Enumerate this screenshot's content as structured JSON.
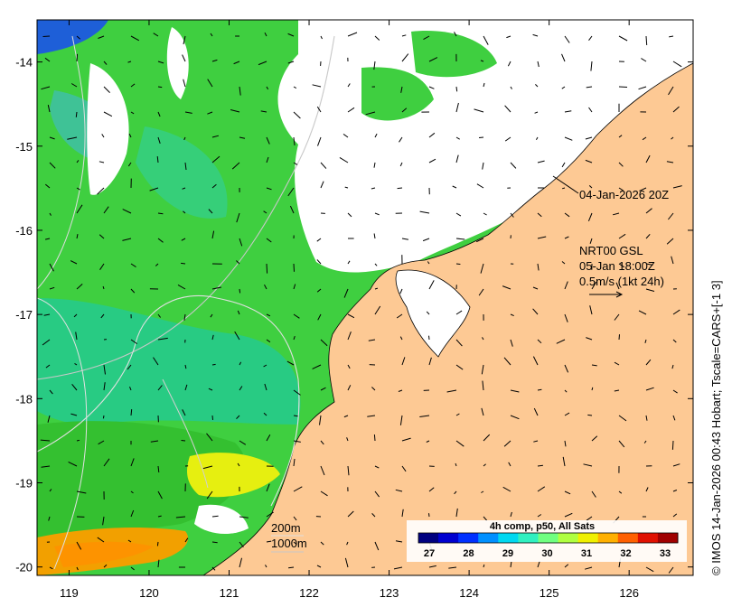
{
  "map": {
    "lon_ticks": [
      "119",
      "120",
      "121",
      "122",
      "123",
      "124",
      "125",
      "126"
    ],
    "lat_ticks": [
      "-14",
      "-15",
      "-16",
      "-17",
      "-18",
      "-19",
      "-20"
    ],
    "image_time": "04-Jan-2026 20Z",
    "current_model": "NRT00 GSL",
    "current_time": "05-Jan 18:00Z",
    "vector_scale": "0.5m/s (1kt 24h)",
    "isobath_200": "200m",
    "isobath_1000": "1000m",
    "credit": "© IMOS 14-Jan-2026 00:43 Hobart; Tscale=CARS+[-1 3]",
    "land_color": "#fdc994"
  },
  "colorbar": {
    "title": "4h comp, p50, All Sats",
    "ticks": [
      "27",
      "28",
      "29",
      "30",
      "31",
      "32",
      "33"
    ],
    "colors": [
      "#00007f",
      "#0000d0",
      "#0030ff",
      "#0090ff",
      "#00d8f0",
      "#30f0c0",
      "#70ff80",
      "#b0ff40",
      "#f0f000",
      "#ffb000",
      "#ff6000",
      "#e01000",
      "#a00000"
    ]
  }
}
